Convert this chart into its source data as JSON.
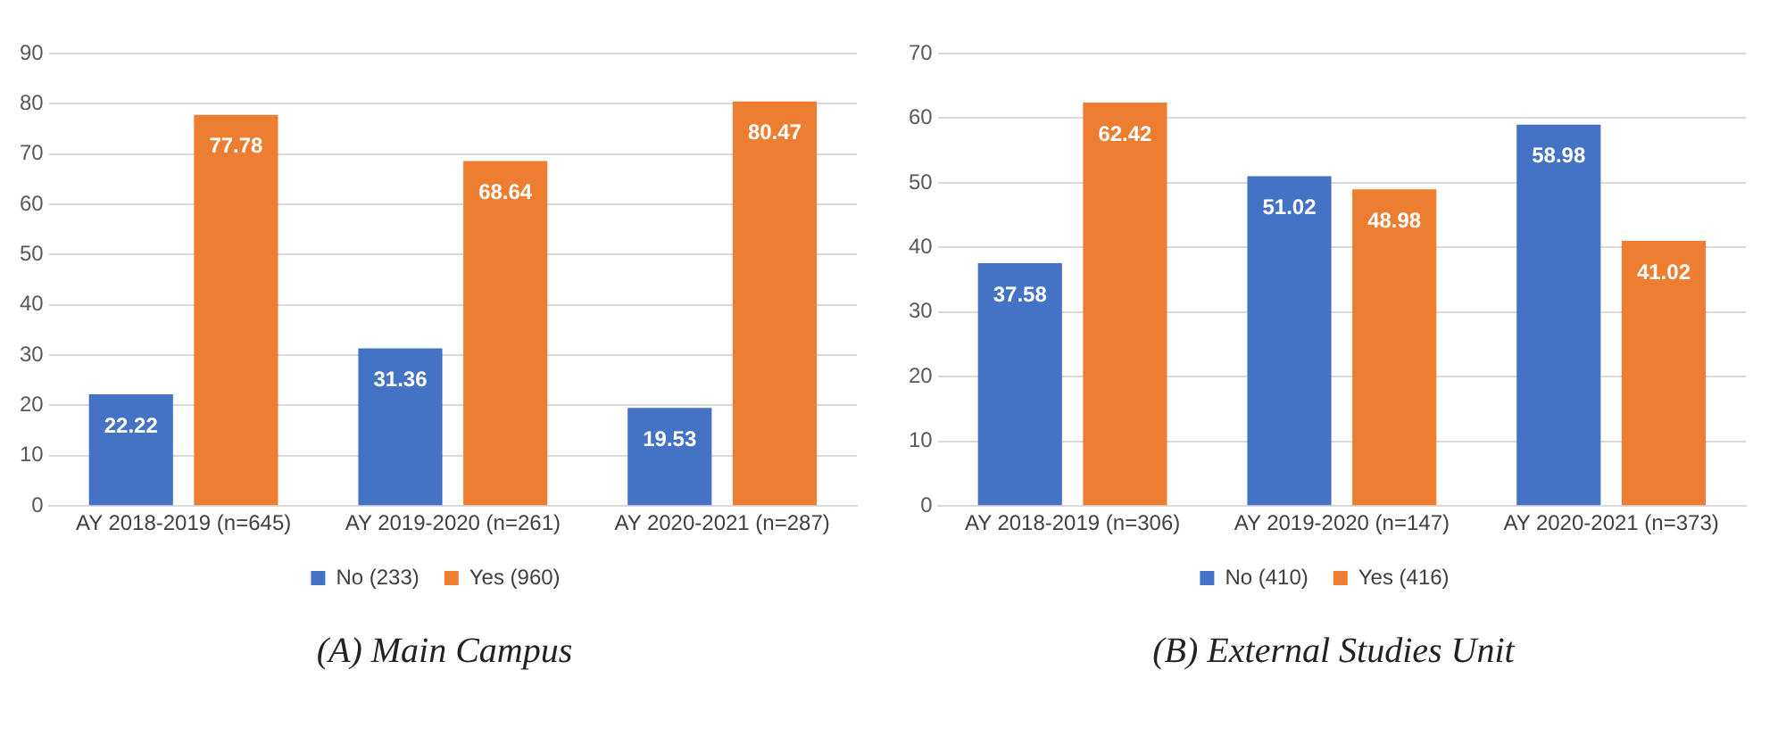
{
  "chart_data": [
    {
      "type": "bar",
      "categories": [
        "AY 2018-2019 (n=645)",
        "AY 2019-2020 (n=261)",
        "AY 2020-2021 (n=287)"
      ],
      "series": [
        {
          "name": "No (233)",
          "color": "#4472c4",
          "values": [
            22.22,
            31.36,
            19.53
          ]
        },
        {
          "name": "Yes (960)",
          "color": "#ed7d31",
          "values": [
            77.78,
            68.64,
            80.47
          ]
        }
      ],
      "ylim": [
        0,
        90
      ],
      "yticks": [
        0,
        10,
        20,
        30,
        40,
        50,
        60,
        70,
        80,
        90
      ],
      "grid": "y",
      "legend": "bottom",
      "data_labels": true,
      "annotations": [
        "(A) Main Campus"
      ]
    },
    {
      "type": "bar",
      "categories": [
        "AY 2018-2019 (n=306)",
        "AY 2019-2020 (n=147)",
        "AY 2020-2021 (n=373)"
      ],
      "series": [
        {
          "name": "No (410)",
          "color": "#4472c4",
          "values": [
            37.58,
            51.02,
            58.98
          ]
        },
        {
          "name": "Yes (416)",
          "color": "#ed7d31",
          "values": [
            62.42,
            48.98,
            41.02
          ]
        }
      ],
      "ylim": [
        0,
        70
      ],
      "yticks": [
        0,
        10,
        20,
        30,
        40,
        50,
        60,
        70
      ],
      "grid": "y",
      "legend": "bottom",
      "data_labels": true,
      "annotations": [
        "(B) External Studies Unit"
      ]
    }
  ]
}
